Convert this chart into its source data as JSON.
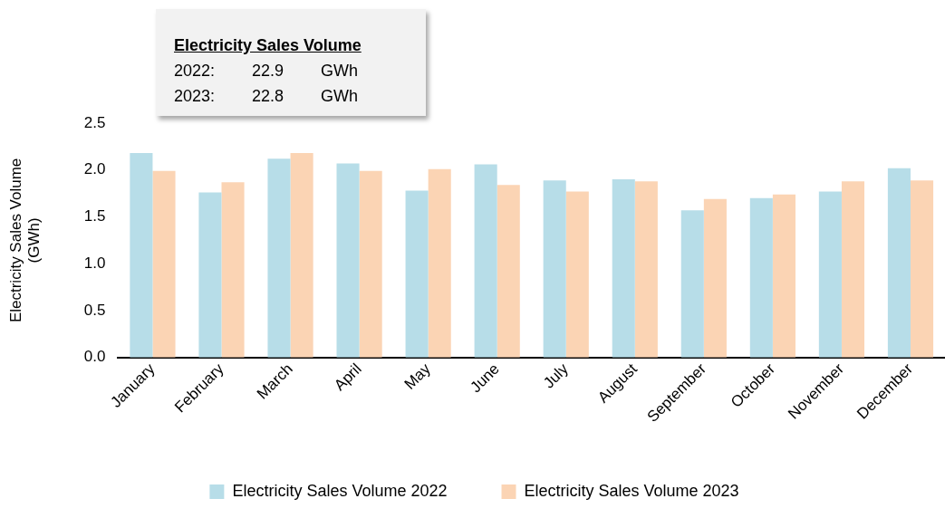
{
  "chart_data": {
    "type": "bar",
    "ylabel": "Electricity Sales Volume (GWh)",
    "categories": [
      "January",
      "February",
      "March",
      "April",
      "May",
      "June",
      "July",
      "August",
      "September",
      "October",
      "November",
      "December"
    ],
    "series": [
      {
        "name": "Electricity Sales Volume 2022",
        "color": "#b7dde8",
        "values": [
          2.18,
          1.76,
          2.12,
          2.07,
          1.78,
          2.06,
          1.89,
          1.9,
          1.57,
          1.7,
          1.77,
          2.02
        ]
      },
      {
        "name": "Electricity Sales Volume 2023",
        "color": "#fbd4b4",
        "values": [
          1.99,
          1.87,
          2.18,
          1.99,
          2.01,
          1.84,
          1.77,
          1.88,
          1.69,
          1.74,
          1.88,
          1.89
        ]
      }
    ],
    "ylim": [
      0,
      2.5
    ],
    "yticks": [
      {
        "value": 0,
        "label": "0.0"
      },
      2.5,
      {
        "value": 0.5,
        "label": "0.5"
      },
      {
        "value": 1,
        "label": "1.0"
      },
      {
        "value": 1.5,
        "label": "1.5"
      },
      {
        "value": 2,
        "label": "2.0"
      }
    ],
    "grid": false,
    "legend": "bottom",
    "annotations": [
      "Electricity Sales Volume",
      "2022: 22.9 GWh",
      "2023: 22.8 GWh"
    ]
  }
}
